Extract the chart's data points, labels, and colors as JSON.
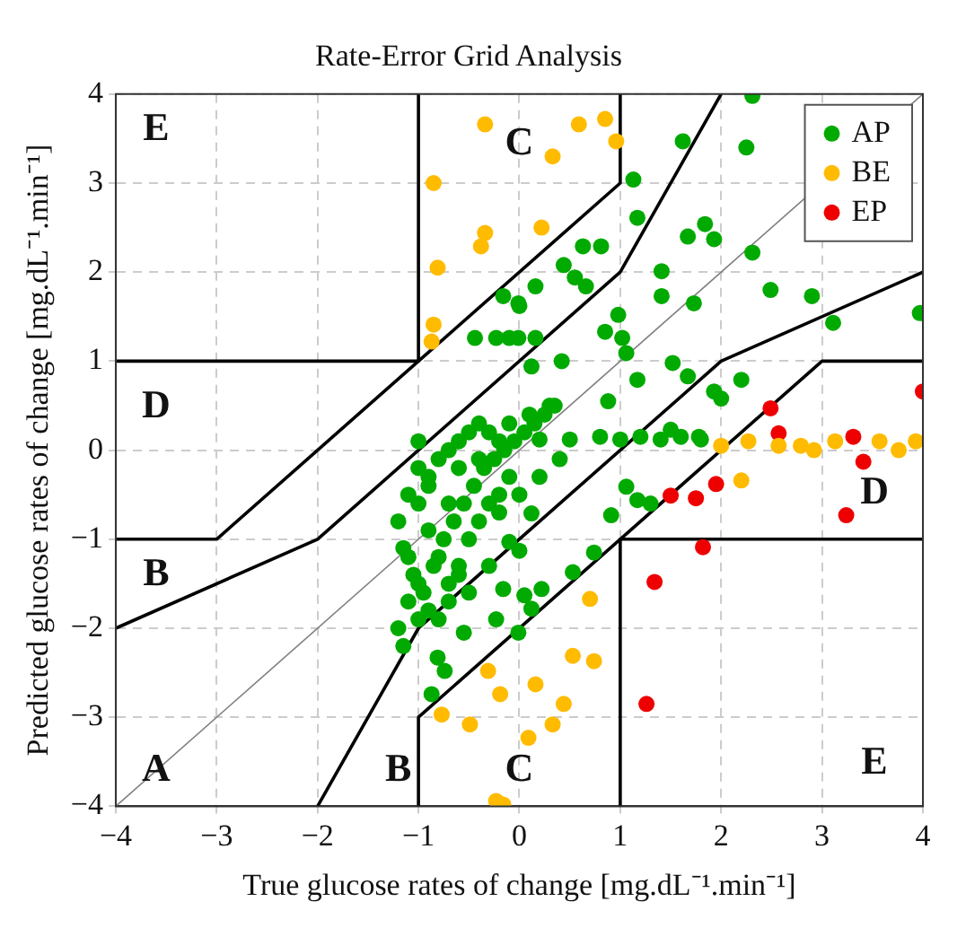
{
  "chart_data": {
    "type": "scatter",
    "title": "Rate-Error Grid Analysis",
    "xlabel": "True glucose rates of change [mg.dL⁻¹.min⁻¹]",
    "ylabel": "Predicted glucose rates of change [mg.dL⁻¹.min⁻¹]",
    "xlim": [
      -4,
      4
    ],
    "ylim": [
      -4,
      4
    ],
    "xticks": [
      -4,
      -3,
      -2,
      -1,
      0,
      1,
      2,
      3,
      4
    ],
    "yticks": [
      -4,
      -3,
      -2,
      -1,
      0,
      1,
      2,
      3,
      4
    ],
    "grid": true,
    "legend": "top right",
    "marker": "circle",
    "annotations": [
      "E",
      "C",
      "D",
      "B",
      "A",
      "B",
      "C",
      "D",
      "E"
    ],
    "series": [
      {
        "type": "line",
        "color": "#808080",
        "marker": "none",
        "x": [
          -4,
          4
        ],
        "values": [
          -4,
          4
        ]
      },
      {
        "type": "line",
        "color": "#000000",
        "marker": "none",
        "x": [
          -4,
          -1,
          -1
        ],
        "values": [
          1,
          1,
          4
        ]
      },
      {
        "type": "line",
        "color": "#000000",
        "marker": "none",
        "x": [
          1,
          1,
          4
        ],
        "values": [
          -4,
          -1,
          -1
        ]
      },
      {
        "type": "line",
        "color": "#000000",
        "marker": "none",
        "x": [
          -4,
          -3,
          -1,
          1,
          1
        ],
        "values": [
          -1,
          -1,
          1,
          3,
          4
        ]
      },
      {
        "type": "line",
        "color": "#000000",
        "marker": "none",
        "x": [
          -1,
          -1,
          1,
          3,
          4
        ],
        "values": [
          -4,
          -3,
          -1,
          1,
          1
        ]
      },
      {
        "type": "line",
        "color": "#000000",
        "marker": "none",
        "x": [
          -4,
          -2,
          1,
          2
        ],
        "values": [
          -2,
          -1,
          2,
          4
        ]
      },
      {
        "type": "line",
        "color": "#000000",
        "marker": "none",
        "x": [
          -2,
          -1,
          2,
          4
        ],
        "values": [
          -4,
          -2,
          1,
          2
        ]
      },
      {
        "name": "AP",
        "color": "#00aa00",
        "x": [
          2.31,
          1.62,
          2.25,
          1.13,
          1.17,
          1.67,
          1.84,
          1.93,
          2.31,
          0.63,
          0.81,
          0.44,
          0.55,
          0.66,
          0.16,
          -0.01,
          1.41,
          1.41,
          1.73,
          2.49,
          2.9,
          3.11,
          3.97,
          0.98,
          0.85,
          1.02,
          1.06,
          -0.1,
          0.16,
          0.42,
          0.12,
          1.52,
          1.67,
          1.17,
          1.93,
          2.0,
          2.2,
          0.88,
          1.5,
          1.78,
          -0.16,
          0.0,
          -0.44,
          -0.23,
          -0.01,
          0.2,
          0.5,
          0.8,
          1.0,
          1.2,
          1.4,
          1.6,
          1.8,
          1.06,
          1.17,
          1.3,
          0.91,
          0.12,
          0.74,
          0.53,
          0.22,
          0.05,
          -0.1,
          0.0,
          -0.87,
          -0.74,
          -0.81,
          -0.55,
          -0.23,
          -0.01,
          0.12,
          -0.16,
          -1.0,
          -0.9,
          -0.8,
          -0.7,
          -0.6,
          -0.5,
          -0.4,
          -0.3,
          -0.2,
          -0.1,
          0.1,
          0.3,
          -1.1,
          -1.2,
          -1.15,
          -1.05,
          -1.1,
          -1.2,
          -1.15,
          -1.0,
          -0.95,
          -0.85,
          -0.75,
          -0.65,
          -0.55,
          -0.45,
          -0.35,
          -0.25,
          -0.15,
          -0.05,
          0.05,
          0.15,
          0.25,
          0.35,
          -1.0,
          -0.9,
          -0.8,
          -0.7,
          -0.6,
          -0.5,
          -0.4,
          -0.3,
          -0.2,
          -0.1,
          -1.1,
          -1.0,
          -0.9,
          -0.8,
          -0.7,
          -0.6,
          -0.5,
          -0.3,
          -0.9,
          -0.7,
          -1.0,
          -0.6,
          -0.4,
          -0.2,
          0.0,
          0.2,
          0.4
        ],
        "values": [
          3.98,
          3.47,
          3.4,
          3.04,
          2.61,
          2.4,
          2.54,
          2.37,
          2.22,
          2.29,
          2.29,
          2.08,
          1.94,
          1.84,
          1.84,
          1.65,
          2.01,
          1.73,
          1.65,
          1.8,
          1.73,
          1.43,
          1.54,
          1.52,
          1.33,
          1.26,
          1.09,
          1.26,
          1.26,
          1.0,
          0.94,
          0.98,
          0.83,
          0.79,
          0.66,
          0.58,
          0.79,
          0.55,
          0.23,
          0.15,
          1.73,
          1.62,
          1.26,
          1.26,
          1.26,
          0.12,
          0.12,
          0.15,
          0.12,
          0.15,
          0.12,
          0.15,
          0.12,
          -0.41,
          -0.56,
          -0.6,
          -0.73,
          -0.71,
          -1.15,
          -1.37,
          -1.56,
          -1.63,
          -1.03,
          -1.13,
          -2.74,
          -2.48,
          -2.33,
          -2.05,
          -1.9,
          -2.05,
          -1.78,
          -1.56,
          -0.2,
          -0.3,
          -0.1,
          0.0,
          0.1,
          0.2,
          0.3,
          0.2,
          0.1,
          0.3,
          0.4,
          0.5,
          -0.5,
          -0.8,
          -1.1,
          -1.4,
          -1.7,
          -2.0,
          -2.2,
          -1.9,
          -1.6,
          -1.3,
          -1.0,
          -0.8,
          -0.6,
          -0.4,
          -0.2,
          -0.1,
          0.0,
          0.1,
          0.2,
          0.3,
          0.4,
          0.5,
          -0.6,
          -0.9,
          -1.2,
          -1.5,
          -1.3,
          -1.0,
          -0.8,
          -0.6,
          -0.5,
          -0.3,
          -1.2,
          -1.5,
          -1.8,
          -1.9,
          -1.7,
          -1.4,
          -1.6,
          -1.3,
          -0.4,
          -0.6,
          0.1,
          -0.2,
          -0.1,
          -0.7,
          -0.5,
          -0.3,
          -0.1
        ]
      },
      {
        "name": "BE",
        "color": "#ffbb00",
        "x": [
          -0.85,
          -0.34,
          -0.34,
          -0.38,
          -0.81,
          -0.85,
          -0.87,
          0.22,
          0.33,
          0.59,
          0.85,
          0.96,
          2.0,
          2.27,
          2.57,
          2.79,
          2.92,
          3.13,
          3.57,
          3.76,
          3.93,
          2.2,
          0.7,
          0.53,
          0.74,
          0.16,
          0.44,
          0.33,
          0.09,
          -0.16,
          -0.31,
          -0.19,
          -0.77,
          -0.49,
          -0.23
        ],
        "values": [
          3.0,
          3.66,
          2.44,
          2.29,
          2.05,
          1.41,
          1.22,
          2.5,
          3.3,
          3.66,
          3.72,
          3.47,
          0.05,
          0.1,
          0.05,
          0.05,
          0.0,
          0.1,
          0.1,
          0.0,
          0.1,
          -0.34,
          -1.67,
          -2.31,
          -2.37,
          -2.63,
          -2.85,
          -3.08,
          -3.23,
          -3.98,
          -2.48,
          -2.74,
          -2.97,
          -3.08,
          -3.94
        ]
      },
      {
        "name": "EP",
        "color": "#ee0000",
        "x": [
          2.49,
          2.57,
          4.0,
          3.31,
          3.41,
          3.24,
          1.5,
          1.75,
          1.95,
          1.82,
          1.34,
          1.26
        ],
        "values": [
          0.47,
          0.19,
          0.66,
          0.15,
          -0.13,
          -0.73,
          -0.51,
          -0.54,
          -0.38,
          -1.09,
          -1.48,
          -2.85
        ]
      }
    ]
  }
}
